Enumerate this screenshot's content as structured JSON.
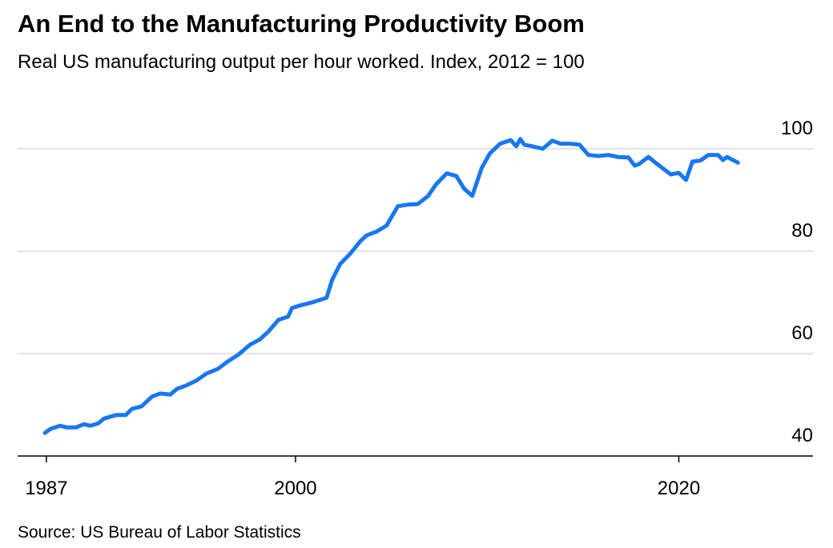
{
  "chart_data": {
    "type": "line",
    "title": "An End to the Manufacturing Productivity Boom",
    "subtitle": "Real US manufacturing output per hour worked. Index, 2012 = 100",
    "source": "Source: US Bureau of Labor Statistics",
    "x": [
      1986.92,
      1987.21,
      1987.71,
      1988.04,
      1988.55,
      1988.96,
      1989.3,
      1989.72,
      1990.0,
      1990.63,
      1991.14,
      1991.47,
      1991.97,
      1992.51,
      1992.93,
      1993.47,
      1993.81,
      1994.31,
      1994.81,
      1995.35,
      1995.94,
      1996.44,
      1997.02,
      1997.61,
      1998.15,
      1998.61,
      1999.11,
      1999.61,
      1999.82,
      2000.24,
      2000.87,
      2001.62,
      2001.91,
      2002.33,
      2002.83,
      2003.37,
      2003.71,
      2004.21,
      2004.75,
      2005.34,
      2005.88,
      2006.38,
      2006.92,
      2007.34,
      2007.89,
      2008.39,
      2008.8,
      2009.22,
      2009.72,
      2010.14,
      2010.68,
      2011.23,
      2011.52,
      2011.73,
      2011.94,
      2012.35,
      2012.9,
      2013.4,
      2013.82,
      2014.32,
      2014.82,
      2015.28,
      2015.82,
      2016.32,
      2016.82,
      2017.37,
      2017.7,
      2017.91,
      2018.41,
      2018.91,
      2019.58,
      2020.0,
      2020.38,
      2020.71,
      2021.13,
      2021.54,
      2022.05,
      2022.3,
      2022.51,
      2023.09
    ],
    "series": [
      {
        "name": "Output per hour",
        "color": "#1877f2",
        "values": [
          44.5,
          45.3,
          45.9,
          45.6,
          45.6,
          46.2,
          45.9,
          46.4,
          47.3,
          48.0,
          48.0,
          49.2,
          49.7,
          51.6,
          52.2,
          52.0,
          53.1,
          53.8,
          54.7,
          56.1,
          57.0,
          58.4,
          59.8,
          61.7,
          62.8,
          64.4,
          66.6,
          67.2,
          68.9,
          69.4,
          70.0,
          70.9,
          74.4,
          77.5,
          79.4,
          81.9,
          83.1,
          83.8,
          85.0,
          88.8,
          89.1,
          89.2,
          90.8,
          93.1,
          95.2,
          94.7,
          92.2,
          90.8,
          96.3,
          99.1,
          101.0,
          101.7,
          100.5,
          101.9,
          100.8,
          100.5,
          100.0,
          101.6,
          101.0,
          101.0,
          100.8,
          98.8,
          98.6,
          98.8,
          98.4,
          98.3,
          96.7,
          97.0,
          98.4,
          96.9,
          95.0,
          95.3,
          93.9,
          97.5,
          97.7,
          98.8,
          98.8,
          97.8,
          98.4,
          97.3
        ]
      }
    ],
    "xlim": [
      1985.5,
      2027
    ],
    "xticks": [
      1987,
      2000,
      2020
    ],
    "ylim": [
      40,
      105
    ],
    "yticks": [
      40,
      60,
      80,
      100
    ],
    "grid": true
  }
}
